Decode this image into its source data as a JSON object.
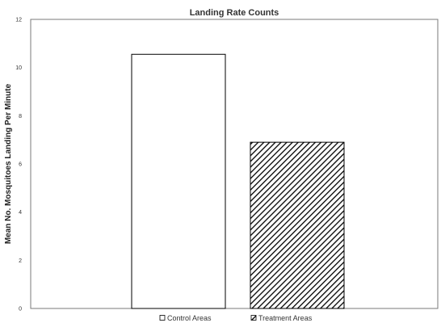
{
  "chart_data": {
    "type": "bar",
    "title": "Landing Rate Counts",
    "xlabel": "",
    "ylabel": "Mean No. Mosquitoes Landing Per Minute",
    "ylim": [
      0,
      12
    ],
    "yticks": [
      0,
      2,
      4,
      6,
      8,
      10,
      12
    ],
    "grid": false,
    "legend_position": "bottom",
    "series": [
      {
        "name": "Control Areas",
        "value": 10.55,
        "fill": "solid-white",
        "color": "#ffffff",
        "edge": "#000000"
      },
      {
        "name": "Treatment Areas",
        "value": 6.9,
        "fill": "diagonal-hatch",
        "color": "#000000",
        "edge": "#000000"
      }
    ]
  }
}
